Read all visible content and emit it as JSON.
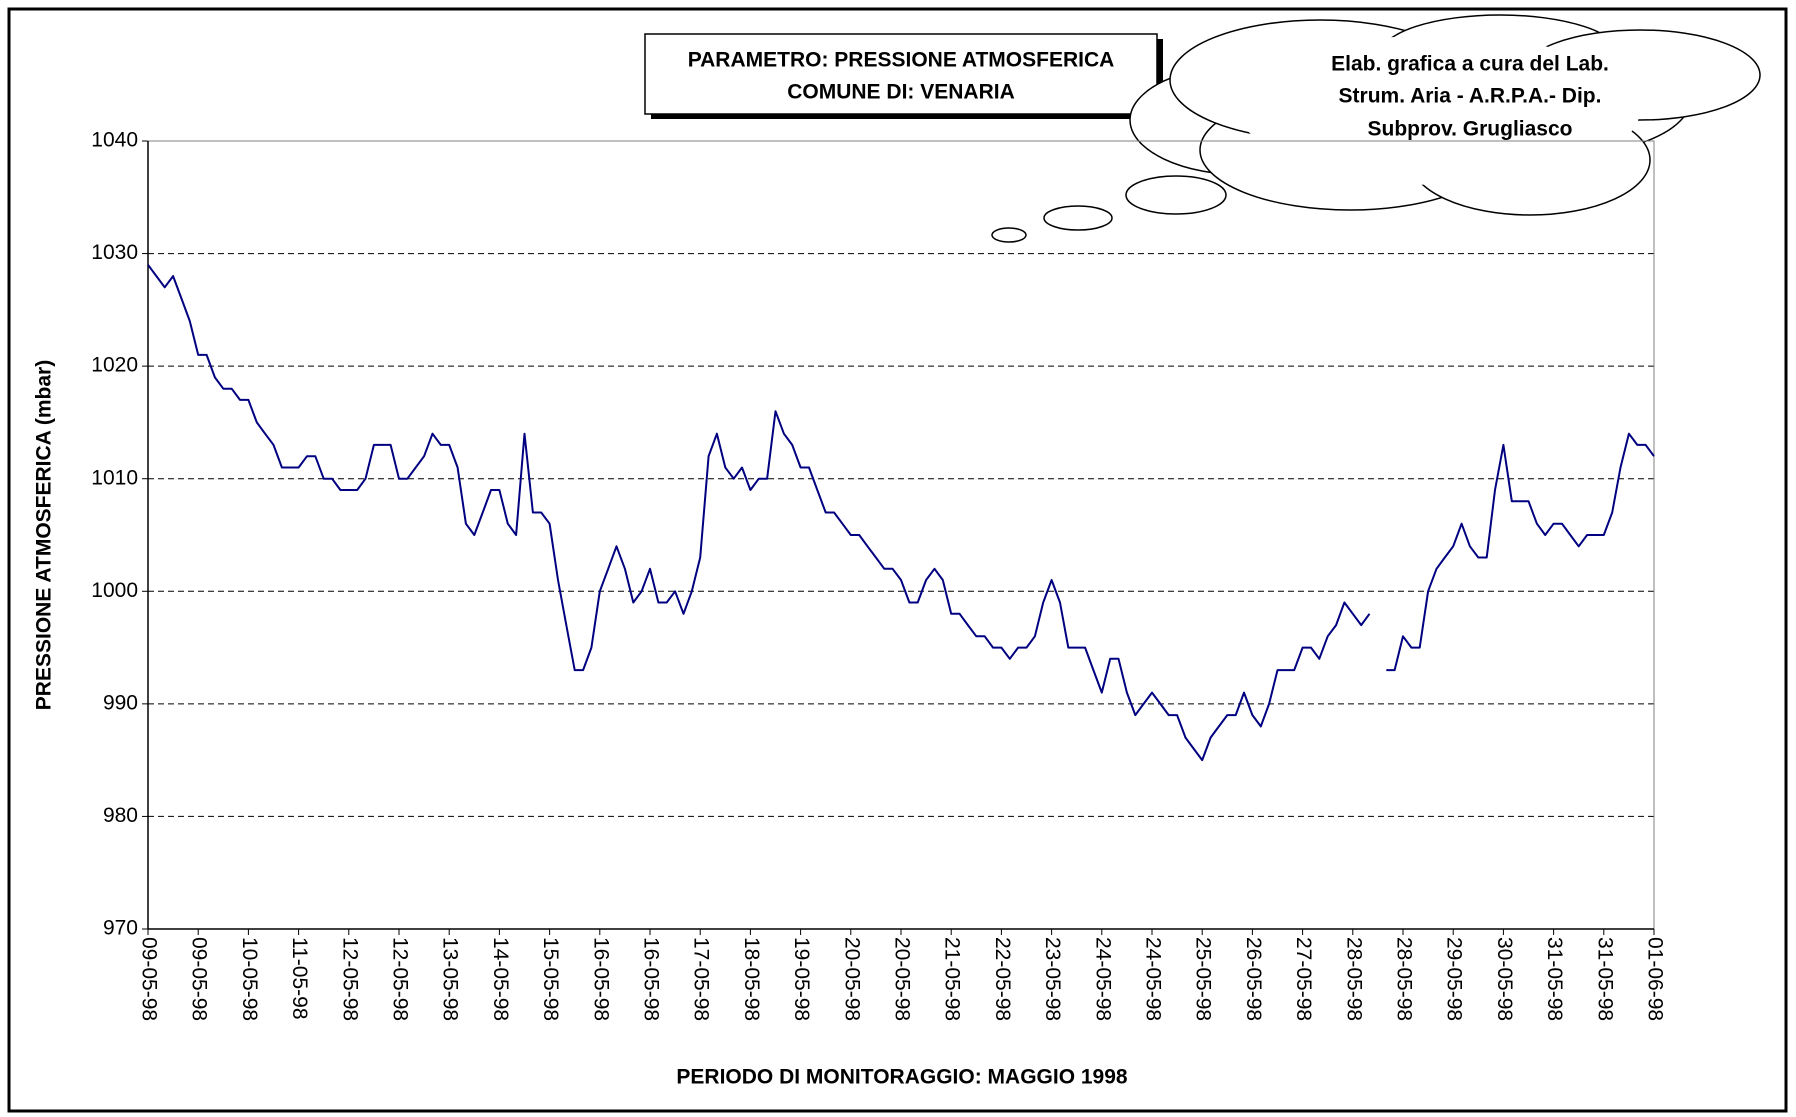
{
  "chart_data": {
    "type": "line",
    "title": [
      "PARAMETRO: PRESSIONE ATMOSFERICA",
      "COMUNE DI: VENARIA"
    ],
    "annotation": [
      "Elab. grafica a cura del Lab.",
      "Strum. Aria - A.R.P.A.- Dip.",
      "Subprov. Grugliasco"
    ],
    "x_label": "PERIODO DI MONITORAGGIO: MAGGIO 1998",
    "y_label": "PRESSIONE ATMOSFERICA (mbar)",
    "categories": [
      "09-05-98",
      null,
      null,
      null,
      null,
      null,
      "09-05-98",
      null,
      null,
      null,
      null,
      null,
      "10-05-98",
      null,
      null,
      null,
      null,
      null,
      "11-05-98",
      null,
      null,
      null,
      null,
      null,
      "12-05-98",
      null,
      null,
      null,
      null,
      null,
      "12-05-98",
      null,
      null,
      null,
      null,
      null,
      "13-05-98",
      null,
      null,
      null,
      null,
      null,
      "14-05-98",
      null,
      null,
      null,
      null,
      null,
      "15-05-98",
      null,
      null,
      null,
      null,
      null,
      "16-05-98",
      null,
      null,
      null,
      null,
      null,
      "16-05-98",
      null,
      null,
      null,
      null,
      null,
      "17-05-98",
      null,
      null,
      null,
      null,
      null,
      "18-05-98",
      null,
      null,
      null,
      null,
      null,
      "19-05-98",
      null,
      null,
      null,
      null,
      null,
      "20-05-98",
      null,
      null,
      null,
      null,
      null,
      "20-05-98",
      null,
      null,
      null,
      null,
      null,
      "21-05-98",
      null,
      null,
      null,
      null,
      null,
      "22-05-98",
      null,
      null,
      null,
      null,
      null,
      "23-05-98",
      null,
      null,
      null,
      null,
      null,
      "24-05-98",
      null,
      null,
      null,
      null,
      null,
      "24-05-98",
      null,
      null,
      null,
      null,
      null,
      "25-05-98",
      null,
      null,
      null,
      null,
      null,
      "26-05-98",
      null,
      null,
      null,
      null,
      null,
      "27-05-98",
      null,
      null,
      null,
      null,
      null,
      "28-05-98",
      null,
      null,
      null,
      null,
      null,
      "28-05-98",
      null,
      null,
      null,
      null,
      null,
      "29-05-98",
      null,
      null,
      null,
      null,
      null,
      "30-05-98",
      null,
      null,
      null,
      null,
      null,
      "31-05-98",
      null,
      null,
      null,
      null,
      null,
      "31-05-98",
      null,
      null,
      null,
      null,
      null,
      "01-06-98"
    ],
    "values": [
      1029,
      1028,
      1027,
      1028,
      1026,
      1024,
      1021,
      1021,
      1019,
      1018,
      1018,
      1017,
      1017,
      1015,
      1014,
      1013,
      1011,
      1011,
      1011,
      1012,
      1012,
      1010,
      1010,
      1009,
      1009,
      1009,
      1010,
      1013,
      1013,
      1013,
      1010,
      1010,
      1011,
      1012,
      1014,
      1013,
      1013,
      1011,
      1006,
      1005,
      1007,
      1009,
      1009,
      1006,
      1005,
      1014,
      1007,
      1007,
      1006,
      1001,
      997,
      993,
      993,
      995,
      1000,
      1002,
      1004,
      1002,
      999,
      1000,
      1002,
      999,
      999,
      1000,
      998,
      1000,
      1003,
      1012,
      1014,
      1011,
      1010,
      1011,
      1009,
      1010,
      1010,
      1016,
      1014,
      1013,
      1011,
      1011,
      1009,
      1007,
      1007,
      1006,
      1005,
      1005,
      1004,
      1003,
      1002,
      1002,
      1001,
      999,
      999,
      1001,
      1002,
      1001,
      998,
      998,
      997,
      996,
      996,
      995,
      995,
      994,
      995,
      995,
      996,
      999,
      1001,
      999,
      995,
      995,
      995,
      993,
      991,
      994,
      994,
      991,
      989,
      990,
      991,
      990,
      989,
      989,
      987,
      986,
      985,
      987,
      988,
      989,
      989,
      991,
      989,
      988,
      990,
      993,
      993,
      993,
      995,
      995,
      994,
      996,
      997,
      999,
      998,
      997,
      998,
      null,
      993,
      993,
      996,
      995,
      995,
      1000,
      1002,
      1003,
      1004,
      1006,
      1004,
      1003,
      1003,
      1009,
      1013,
      1008,
      1008,
      1008,
      1006,
      1005,
      1006,
      1006,
      1005,
      1004,
      1005,
      1005,
      1005,
      1007,
      1011,
      1014,
      1013,
      1013,
      1012
    ],
    "color": "#000080",
    "ylim": [
      970,
      1040
    ],
    "yticks": [
      970,
      980,
      990,
      1000,
      1010,
      1020,
      1030,
      1040
    ],
    "grid": true
  }
}
